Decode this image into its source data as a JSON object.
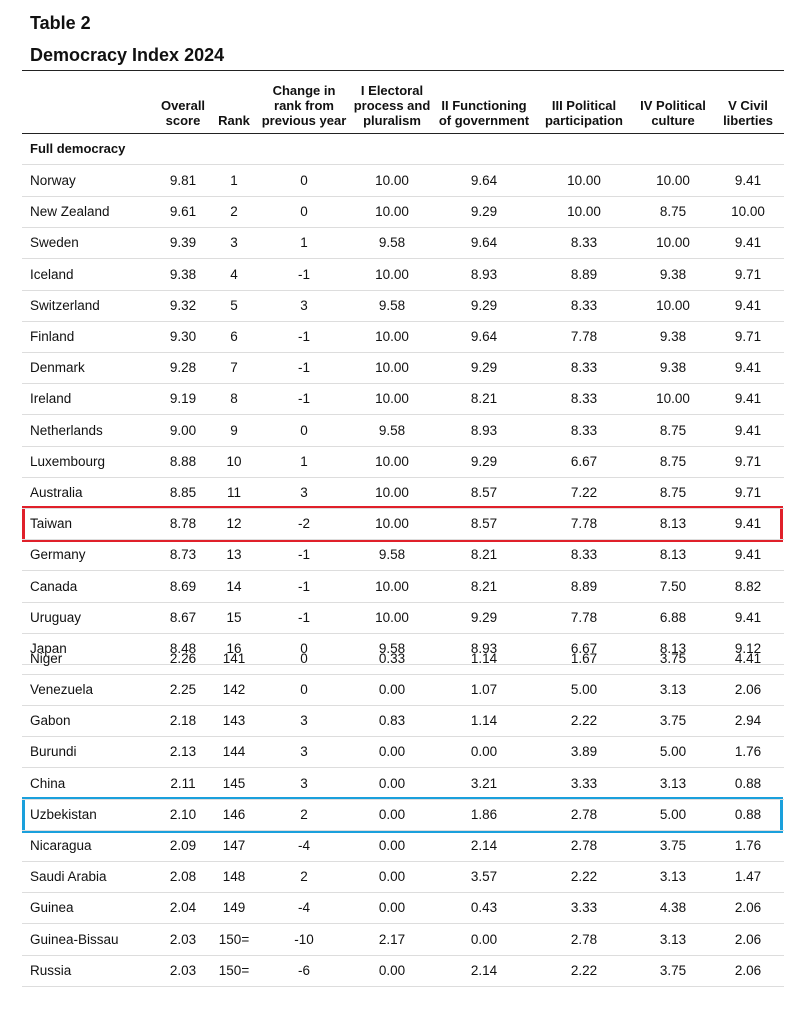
{
  "header": {
    "title": "Table 2",
    "subtitle": "Democracy Index 2024"
  },
  "table": {
    "columns": [
      "Overall\nscore",
      "Rank",
      "Change in\nrank from\nprevious year",
      "I Electoral\nprocess and\npluralism",
      "II Functioning\nof government",
      "III Political\nparticipation",
      "IV Political\nculture",
      "V Civil\nliberties"
    ],
    "groups": [
      {
        "label": "Full democracy",
        "rows": [
          [
            "Norway",
            "9.81",
            "1",
            "0",
            "10.00",
            "9.64",
            "10.00",
            "10.00",
            "9.41"
          ],
          [
            "New Zealand",
            "9.61",
            "2",
            "0",
            "10.00",
            "9.29",
            "10.00",
            "8.75",
            "10.00"
          ],
          [
            "Sweden",
            "9.39",
            "3",
            "1",
            "9.58",
            "9.64",
            "8.33",
            "10.00",
            "9.41"
          ],
          [
            "Iceland",
            "9.38",
            "4",
            "-1",
            "10.00",
            "8.93",
            "8.89",
            "9.38",
            "9.71"
          ],
          [
            "Switzerland",
            "9.32",
            "5",
            "3",
            "9.58",
            "9.29",
            "8.33",
            "10.00",
            "9.41"
          ],
          [
            "Finland",
            "9.30",
            "6",
            "-1",
            "10.00",
            "9.64",
            "7.78",
            "9.38",
            "9.71"
          ],
          [
            "Denmark",
            "9.28",
            "7",
            "-1",
            "10.00",
            "9.29",
            "8.33",
            "9.38",
            "9.41"
          ],
          [
            "Ireland",
            "9.19",
            "8",
            "-1",
            "10.00",
            "8.21",
            "8.33",
            "10.00",
            "9.41"
          ],
          [
            "Netherlands",
            "9.00",
            "9",
            "0",
            "9.58",
            "8.93",
            "8.33",
            "8.75",
            "9.41"
          ],
          [
            "Luxembourg",
            "8.88",
            "10",
            "1",
            "10.00",
            "9.29",
            "6.67",
            "8.75",
            "9.71"
          ],
          [
            "Australia",
            "8.85",
            "11",
            "3",
            "10.00",
            "8.57",
            "7.22",
            "8.75",
            "9.71"
          ],
          [
            "Taiwan",
            "8.78",
            "12",
            "-2",
            "10.00",
            "8.57",
            "7.78",
            "8.13",
            "9.41"
          ],
          [
            "Germany",
            "8.73",
            "13",
            "-1",
            "9.58",
            "8.21",
            "8.33",
            "8.13",
            "9.41"
          ],
          [
            "Canada",
            "8.69",
            "14",
            "-1",
            "10.00",
            "8.21",
            "8.89",
            "7.50",
            "8.82"
          ],
          [
            "Uruguay",
            "8.67",
            "15",
            "-1",
            "10.00",
            "9.29",
            "7.78",
            "6.88",
            "9.41"
          ],
          [
            "Japan",
            "8.48",
            "16",
            "0",
            "9.58",
            "8.93",
            "6.67",
            "8.13",
            "9.12"
          ]
        ]
      },
      {
        "rows": [
          [
            "Niger",
            "2.26",
            "141",
            "0",
            "0.33",
            "1.14",
            "1.67",
            "3.75",
            "4.41"
          ],
          [
            "Venezuela",
            "2.25",
            "142",
            "0",
            "0.00",
            "1.07",
            "5.00",
            "3.13",
            "2.06"
          ],
          [
            "Gabon",
            "2.18",
            "143",
            "3",
            "0.83",
            "1.14",
            "2.22",
            "3.75",
            "2.94"
          ],
          [
            "Burundi",
            "2.13",
            "144",
            "3",
            "0.00",
            "0.00",
            "3.89",
            "5.00",
            "1.76"
          ],
          [
            "China",
            "2.11",
            "145",
            "3",
            "0.00",
            "3.21",
            "3.33",
            "3.13",
            "0.88"
          ],
          [
            "Uzbekistan",
            "2.10",
            "146",
            "2",
            "0.00",
            "1.86",
            "2.78",
            "5.00",
            "0.88"
          ],
          [
            "Nicaragua",
            "2.09",
            "147",
            "-4",
            "0.00",
            "2.14",
            "2.78",
            "3.75",
            "1.76"
          ],
          [
            "Saudi Arabia",
            "2.08",
            "148",
            "2",
            "0.00",
            "3.57",
            "2.22",
            "3.13",
            "1.47"
          ],
          [
            "Guinea",
            "2.04",
            "149",
            "-4",
            "0.00",
            "0.43",
            "3.33",
            "4.38",
            "2.06"
          ],
          [
            "Guinea-Bissau",
            "2.03",
            "150=",
            "-10",
            "2.17",
            "0.00",
            "2.78",
            "3.13",
            "2.06"
          ],
          [
            "Russia",
            "2.03",
            "150=",
            "-6",
            "0.00",
            "2.14",
            "2.22",
            "3.75",
            "2.06"
          ]
        ]
      }
    ]
  }
}
